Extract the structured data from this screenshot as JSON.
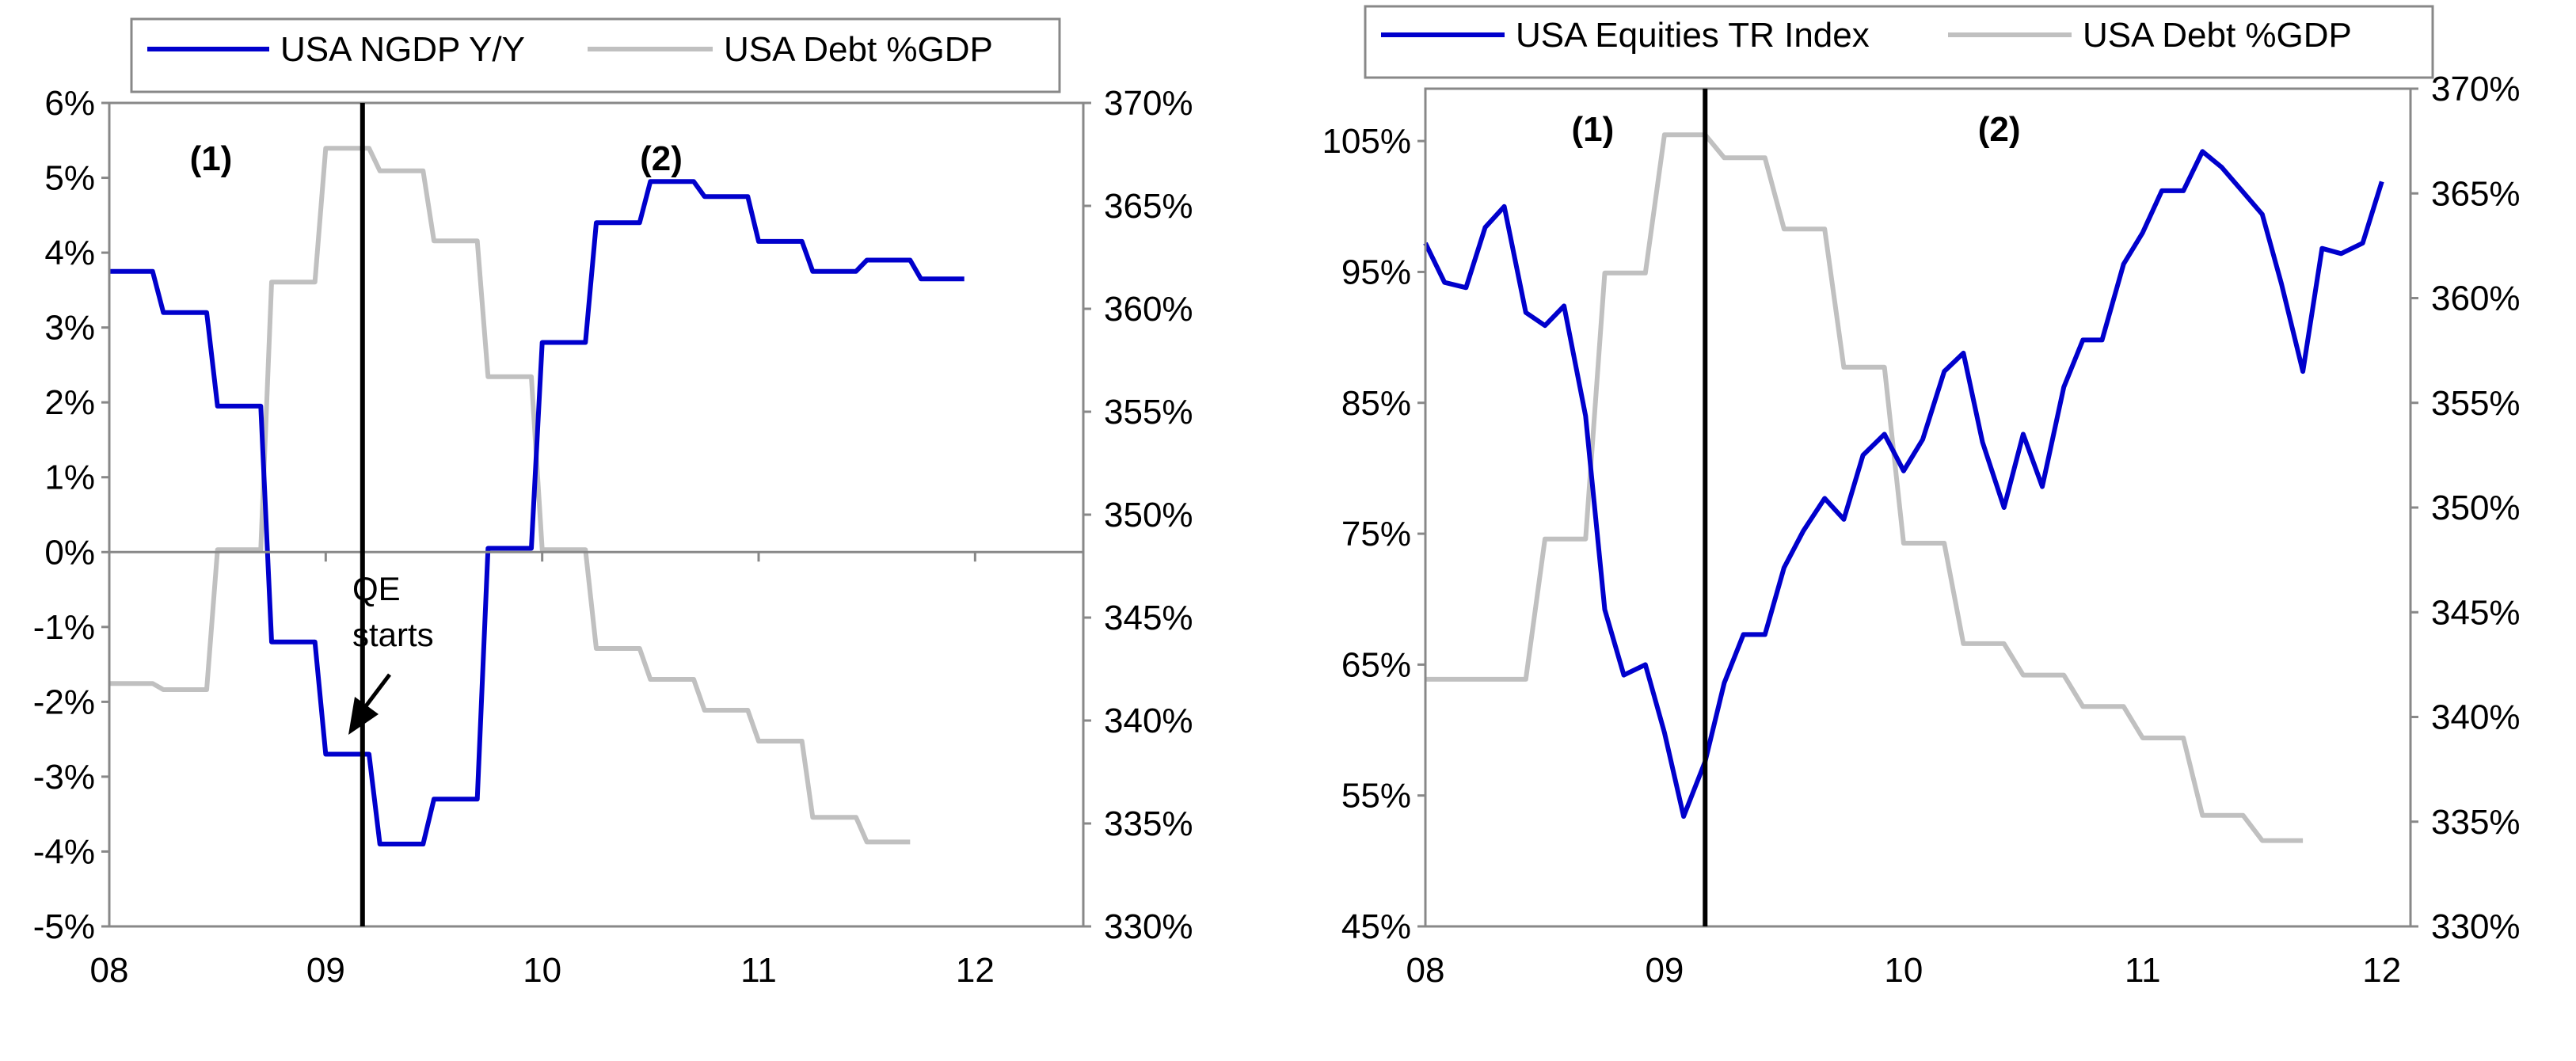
{
  "chart_data": [
    {
      "type": "line",
      "left_axis": {
        "ticks": [
          "-5%",
          "-4%",
          "-3%",
          "-2%",
          "-1%",
          "0%",
          "1%",
          "2%",
          "3%",
          "4%",
          "5%",
          "6%"
        ],
        "range": [
          -5,
          6
        ]
      },
      "right_axis": {
        "ticks": [
          "330%",
          "335%",
          "340%",
          "345%",
          "350%",
          "355%",
          "360%",
          "365%",
          "370%"
        ],
        "range": [
          330,
          370
        ]
      },
      "x_axis": {
        "ticks": [
          "08",
          "09",
          "10",
          "11",
          "12"
        ],
        "range": [
          2008,
          2012.5
        ]
      },
      "legend": [
        "USA NGDP Y/Y",
        "USA Debt %GDP"
      ],
      "legend_position": "top",
      "phase_labels": [
        {
          "text": "(1)",
          "x": 2008.47,
          "y": 5.1
        },
        {
          "text": "(2)",
          "x": 2010.55,
          "y": 5.1
        }
      ],
      "vline_x": 2009.17,
      "annotation": {
        "line1": "QE",
        "line2": "starts",
        "arrow_tip": [
          2009.02,
          -2.45
        ]
      },
      "series": [
        {
          "name": "USA NGDP Y/Y",
          "axis": "left",
          "color": "#0000cc",
          "x": [
            2008.0,
            2008.2,
            2008.25,
            2008.45,
            2008.5,
            2008.7,
            2008.75,
            2008.95,
            2009.0,
            2009.2,
            2009.25,
            2009.45,
            2009.5,
            2009.7,
            2009.75,
            2009.95,
            2010.0,
            2010.2,
            2010.25,
            2010.45,
            2010.5,
            2010.7,
            2010.75,
            2010.95,
            2011.0,
            2011.2,
            2011.25,
            2011.45,
            2011.5,
            2011.7,
            2011.75,
            2011.95
          ],
          "y": [
            3.75,
            3.75,
            3.2,
            3.2,
            1.95,
            1.95,
            -1.2,
            -1.2,
            -2.7,
            -2.7,
            -3.9,
            -3.9,
            -3.3,
            -3.3,
            0.05,
            0.05,
            2.8,
            2.8,
            4.4,
            4.4,
            4.95,
            4.95,
            4.75,
            4.75,
            4.15,
            4.15,
            3.75,
            3.75,
            3.9,
            3.9,
            3.65,
            3.65
          ]
        },
        {
          "name": "USA Debt %GDP",
          "axis": "right",
          "color": "#c0c0c0",
          "x": [
            2008.0,
            2008.2,
            2008.25,
            2008.45,
            2008.5,
            2008.7,
            2008.75,
            2008.95,
            2009.0,
            2009.2,
            2009.25,
            2009.45,
            2009.5,
            2009.7,
            2009.75,
            2009.95,
            2010.0,
            2010.2,
            2010.25,
            2010.45,
            2010.5,
            2010.7,
            2010.75,
            2010.95,
            2011.0,
            2011.2,
            2011.25,
            2011.45,
            2011.5,
            2011.7
          ],
          "y": [
            341.8,
            341.8,
            341.5,
            341.5,
            348.3,
            348.3,
            361.3,
            361.3,
            367.8,
            367.8,
            366.7,
            366.7,
            363.3,
            363.3,
            356.7,
            356.7,
            348.3,
            348.3,
            343.5,
            343.5,
            342.0,
            342.0,
            340.5,
            340.5,
            339.0,
            339.0,
            335.3,
            335.3,
            334.1,
            334.1
          ]
        }
      ]
    },
    {
      "type": "line",
      "left_axis": {
        "ticks": [
          "45%",
          "55%",
          "65%",
          "75%",
          "85%",
          "95%",
          "105%"
        ],
        "range": [
          45,
          109
        ]
      },
      "right_axis": {
        "ticks": [
          "330%",
          "335%",
          "340%",
          "345%",
          "350%",
          "355%",
          "360%",
          "365%",
          "370%"
        ],
        "range": [
          330,
          370
        ]
      },
      "x_axis": {
        "ticks": [
          "08",
          "09",
          "10",
          "11",
          "12"
        ],
        "range": [
          2008,
          2012.12
        ]
      },
      "legend": [
        "USA Equities TR Index",
        "USA Debt %GDP"
      ],
      "legend_position": "top",
      "phase_labels": [
        {
          "text": "(1)",
          "x": 2008.7,
          "y": 105
        },
        {
          "text": "(2)",
          "x": 2010.4,
          "y": 105
        }
      ],
      "vline_x": 2009.17,
      "series": [
        {
          "name": "USA Equities TR Index",
          "axis": "left",
          "color": "#0000cc",
          "x": [
            2008.0,
            2008.08,
            2008.17,
            2008.25,
            2008.33,
            2008.42,
            2008.5,
            2008.58,
            2008.67,
            2008.75,
            2008.83,
            2008.92,
            2009.0,
            2009.08,
            2009.17,
            2009.25,
            2009.33,
            2009.42,
            2009.5,
            2009.58,
            2009.67,
            2009.75,
            2009.83,
            2009.92,
            2010.0,
            2010.08,
            2010.17,
            2010.25,
            2010.33,
            2010.42,
            2010.5,
            2010.58,
            2010.67,
            2010.75,
            2010.83,
            2010.92,
            2011.0,
            2011.08,
            2011.17,
            2011.25,
            2011.33,
            2011.42,
            2011.5,
            2011.58,
            2011.67,
            2011.75,
            2011.83,
            2011.92,
            2012.0
          ],
          "y": [
            97.2,
            94.2,
            93.8,
            98.4,
            100.0,
            91.9,
            90.9,
            92.4,
            84.0,
            69.2,
            64.2,
            65.0,
            59.8,
            53.4,
            57.6,
            63.6,
            67.3,
            67.3,
            72.4,
            75.2,
            77.7,
            76.1,
            81.0,
            82.6,
            79.8,
            82.2,
            87.4,
            88.8,
            82.0,
            77.0,
            82.6,
            78.6,
            86.2,
            89.8,
            89.8,
            95.6,
            98.0,
            101.2,
            101.2,
            104.2,
            103.0,
            101.1,
            99.4,
            94.1,
            87.4,
            96.8,
            96.4,
            97.2,
            101.9
          ]
        },
        {
          "name": "USA Debt %GDP",
          "axis": "right",
          "color": "#c0c0c0",
          "x": [
            2008.0,
            2008.42,
            2008.5,
            2008.67,
            2008.75,
            2008.92,
            2009.0,
            2009.17,
            2009.25,
            2009.42,
            2009.5,
            2009.67,
            2009.75,
            2009.92,
            2010.0,
            2010.17,
            2010.25,
            2010.42,
            2010.5,
            2010.67,
            2010.75,
            2010.92,
            2011.0,
            2011.17,
            2011.25,
            2011.42,
            2011.5,
            2011.67
          ],
          "y": [
            341.8,
            341.8,
            348.5,
            348.5,
            361.2,
            361.2,
            367.8,
            367.8,
            366.7,
            366.7,
            363.3,
            363.3,
            356.7,
            356.7,
            348.3,
            348.3,
            343.5,
            343.5,
            342.0,
            342.0,
            340.5,
            340.5,
            339.0,
            339.0,
            335.3,
            335.3,
            334.1,
            334.1
          ]
        }
      ]
    }
  ]
}
